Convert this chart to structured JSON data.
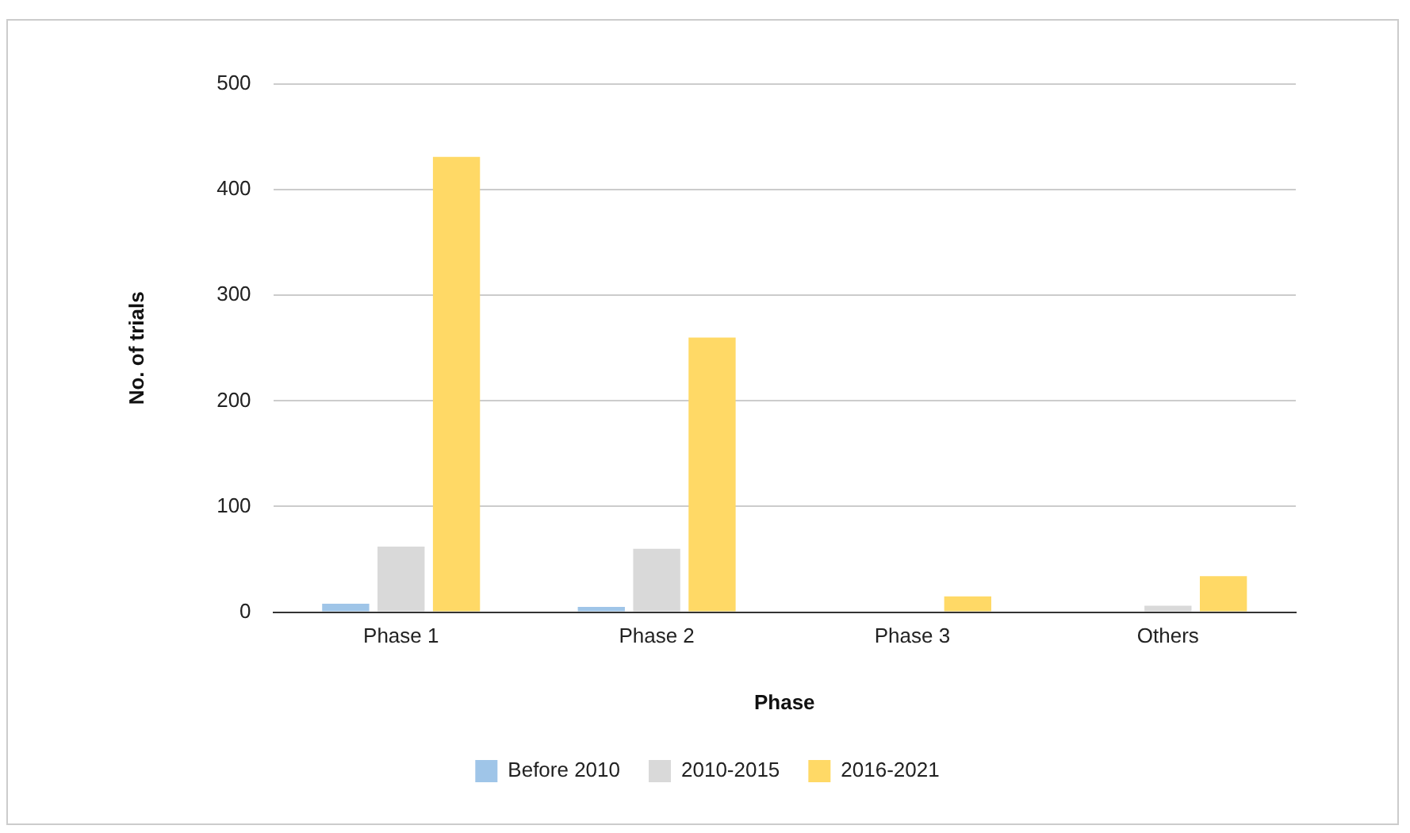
{
  "chart_data": {
    "type": "bar",
    "xlabel": "Phase",
    "ylabel": "No. of trials",
    "categories": [
      "Phase 1",
      "Phase 2",
      "Phase 3",
      "Others"
    ],
    "series": [
      {
        "name": "Before 2010",
        "color": "#9fc5e8",
        "values": [
          8,
          5,
          0,
          0
        ]
      },
      {
        "name": "2010-2015",
        "color": "#d9d9d9",
        "values": [
          62,
          60,
          0,
          6
        ]
      },
      {
        "name": "2016-2021",
        "color": "#ffd966",
        "values": [
          431,
          260,
          15,
          34
        ]
      }
    ],
    "ylim": [
      0,
      500
    ],
    "yticks": [
      0,
      100,
      200,
      300,
      400,
      500
    ],
    "grid": "y",
    "legend": "bottom"
  }
}
